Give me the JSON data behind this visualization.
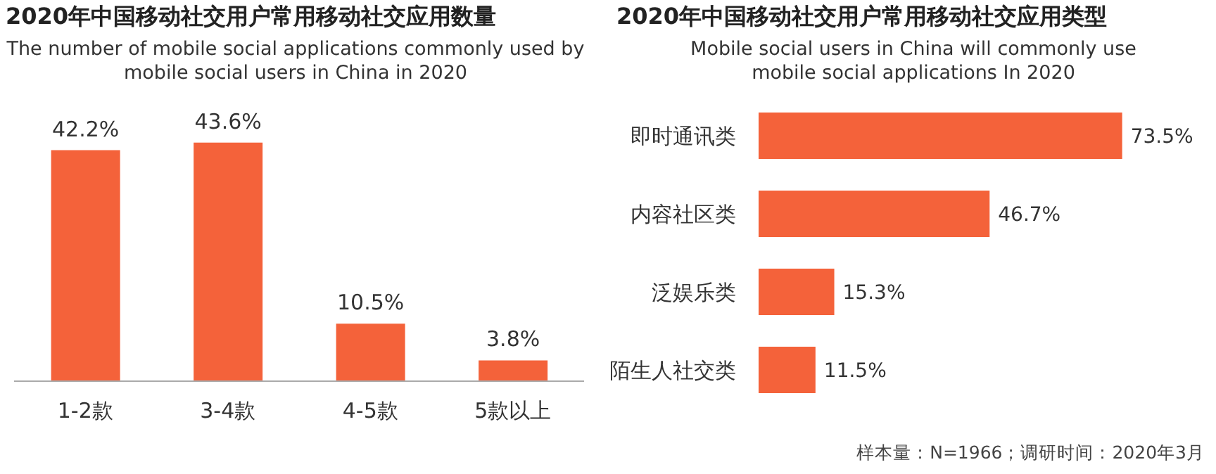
{
  "chart_data": [
    {
      "type": "bar",
      "title": "2020年中国移动社交用户常用移动社交应用数量",
      "subtitle": "The number of mobile social applications commonly used by mobile social users in China in 2020",
      "categories": [
        "1-2款",
        "3-4款",
        "4-5款",
        "5款以上"
      ],
      "values": [
        42.2,
        43.6,
        10.5,
        3.8
      ],
      "value_labels": [
        "42.2%",
        "43.6%",
        "10.5%",
        "3.8%"
      ],
      "color": "#f4623a",
      "tick_labels": "x"
    },
    {
      "type": "bar",
      "orientation": "horizontal",
      "title": "2020年中国移动社交用户常用移动社交应用类型",
      "subtitle": "Mobile social users in China will commonly use mobile social applications In 2020",
      "categories": [
        "即时通讯类",
        "内容社区类",
        "泛娱乐类",
        "陌生人社交类"
      ],
      "values": [
        73.5,
        46.7,
        15.3,
        11.5
      ],
      "value_labels": [
        "73.5%",
        "46.7%",
        "15.3%",
        "11.5%"
      ],
      "color": "#f4623a",
      "tick_labels": "y",
      "annotations": [
        "样本量：N=1966；调研时间：2020年3月"
      ]
    }
  ]
}
